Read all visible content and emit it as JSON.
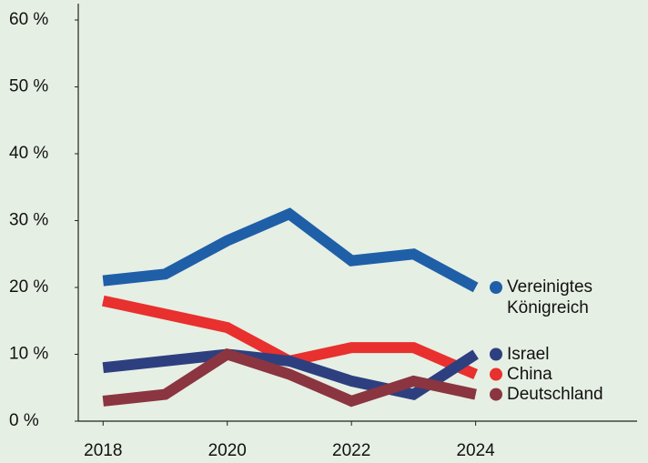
{
  "chart_data": {
    "type": "line",
    "x": [
      2018,
      2019,
      2020,
      2021,
      2022,
      2023,
      2024
    ],
    "xlim": [
      2017.6,
      2026.6
    ],
    "xticks": [
      2018,
      2020,
      2022,
      2024
    ],
    "ylim": [
      0,
      60
    ],
    "yticks": [
      {
        "value": 0,
        "label": "0 %"
      },
      {
        "value": 10,
        "label": "10 %"
      },
      {
        "value": 20,
        "label": "20 %"
      },
      {
        "value": 30,
        "label": "30 %"
      },
      {
        "value": 40,
        "label": "40 %"
      },
      {
        "value": 50,
        "label": "50 %"
      },
      {
        "value": 60,
        "label": "60 %"
      }
    ],
    "grid": false,
    "series": [
      {
        "name": "Vereinigtes Königreich",
        "color": "#1f5fa8",
        "values": [
          21,
          22,
          27,
          31,
          24,
          25,
          20
        ]
      },
      {
        "name": "China",
        "color": "#e8302e",
        "values": [
          18,
          16,
          14,
          9,
          11,
          11,
          7
        ]
      },
      {
        "name": "Israel",
        "color": "#2e3f80",
        "values": [
          8,
          9,
          10,
          9,
          6,
          4,
          10
        ]
      },
      {
        "name": "Deutschland",
        "color": "#8b3540",
        "values": [
          3,
          4,
          10,
          7,
          3,
          6,
          4
        ]
      }
    ]
  }
}
